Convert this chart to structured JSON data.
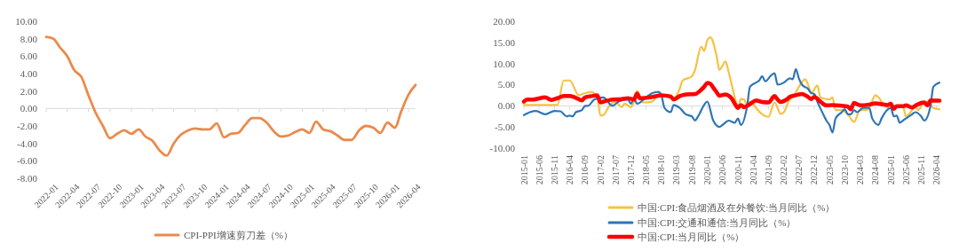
{
  "chart_data": [
    {
      "type": "line",
      "x": [
        "2022-01",
        "2022-02",
        "2022-03",
        "2022-04",
        "2022-05",
        "2022-06",
        "2022-07",
        "2022-08",
        "2022-09",
        "2022-10",
        "2022-11",
        "2022-12",
        "2023-01",
        "2023-02",
        "2023-03",
        "2023-04",
        "2023-05",
        "2023-06",
        "2023-07",
        "2023-08",
        "2023-09",
        "2023-10",
        "2023-11",
        "2023-12",
        "2024-01",
        "2024-02",
        "2024-03",
        "2024-04",
        "2024-05",
        "2024-06",
        "2024-07",
        "2024-08",
        "2024-09",
        "2024-10",
        "2024-11",
        "2024-12",
        "2025-01",
        "2025-02",
        "2025-03",
        "2025-04",
        "2025-05",
        "2025-06",
        "2025-07",
        "2025-08",
        "2025-09",
        "2025-10",
        "2025-11",
        "2025-12",
        "2026-01",
        "2026-02",
        "2026-03",
        "2026-04",
        "2026-05"
      ],
      "series": [
        {
          "name": "CPI-PPI增速剪刀差（%）",
          "color": "#eb8a4c",
          "values": [
            8.2,
            8.0,
            7.0,
            6.0,
            4.4,
            3.6,
            1.5,
            -0.5,
            -2.0,
            -3.4,
            -2.9,
            -2.5,
            -2.9,
            -2.4,
            -3.2,
            -3.7,
            -4.8,
            -5.4,
            -4.0,
            -3.0,
            -2.5,
            -2.3,
            -2.4,
            -2.4,
            -1.7,
            -3.3,
            -2.9,
            -2.8,
            -1.9,
            -1.1,
            -1.1,
            -1.6,
            -2.6,
            -3.2,
            -3.1,
            -2.7,
            -2.4,
            -2.8,
            -1.5,
            -2.4,
            -2.6,
            -3.1,
            -3.6,
            -3.6,
            -2.5,
            -2.0,
            -2.2,
            -2.8,
            -1.6,
            -2.2,
            -0.3,
            1.6,
            2.7
          ]
        }
      ],
      "xlim": [
        "2022-01",
        "2026-05"
      ],
      "xticks": [
        "2022-01",
        "2022-04",
        "2022-07",
        "2022-10",
        "2023-01",
        "2023-04",
        "2023-07",
        "2023-10",
        "2024-01",
        "2024-04",
        "2024-07",
        "2024-10",
        "2025-01",
        "2025-04",
        "2025-07",
        "2025-10",
        "2026-01",
        "2026-04"
      ],
      "ylim": [
        -8,
        10
      ],
      "yticks": [
        {
          "value": -8,
          "label": "-8.00"
        },
        {
          "value": -6,
          "label": "-6.00"
        },
        {
          "value": -4,
          "label": "-4.00"
        },
        {
          "value": -2,
          "label": "-2.00"
        },
        {
          "value": 0,
          "label": "0.00"
        },
        {
          "value": 2,
          "label": "2.00"
        },
        {
          "value": 4,
          "label": "4.00"
        },
        {
          "value": 6,
          "label": "6.00"
        },
        {
          "value": 8,
          "label": "8.00"
        },
        {
          "value": 10,
          "label": "10.00"
        }
      ],
      "legend": "bottom"
    },
    {
      "type": "line",
      "series": [
        {
          "name": "中国:CPI:食品烟酒及在外餐饮:当月同比（%）",
          "color": "#f5c242",
          "x": [
            "2015-01",
            "2015-12",
            "2016-02",
            "2016-04",
            "2016-07",
            "2016-09",
            "2016-11",
            "2017-01",
            "2017-02",
            "2017-03",
            "2017-05",
            "2017-07",
            "2017-09",
            "2017-10",
            "2017-12",
            "2018-01",
            "2018-02",
            "2018-04",
            "2018-07",
            "2018-09",
            "2019-01",
            "2019-02",
            "2019-04",
            "2019-05",
            "2019-08",
            "2019-09",
            "2019-11",
            "2019-12",
            "2020-01",
            "2020-02",
            "2020-04",
            "2020-05",
            "2020-07",
            "2020-08",
            "2020-10",
            "2020-11",
            "2020-12",
            "2021-01",
            "2021-02",
            "2021-03",
            "2021-04",
            "2021-05",
            "2021-07",
            "2021-09",
            "2021-11",
            "2022-01",
            "2022-02",
            "2022-04",
            "2022-05",
            "2022-07",
            "2022-09",
            "2022-10",
            "2022-11",
            "2023-01",
            "2023-02",
            "2023-05",
            "2023-06",
            "2023-07",
            "2023-09",
            "2023-11",
            "2024-01",
            "2024-03",
            "2024-05",
            "2024-06",
            "2024-08",
            "2024-09",
            "2024-11",
            "2025-01",
            "2025-05",
            "2025-06",
            "2025-08",
            "2025-09",
            "2025-10",
            "2025-12",
            "2026-01",
            "2026-03",
            "2026-05"
          ],
          "values": [
            0.2,
            0.2,
            6.0,
            6.0,
            2.5,
            3.0,
            3.3,
            2.0,
            -2.3,
            -2.2,
            0.0,
            1.0,
            -0.3,
            0.5,
            -0.3,
            1.0,
            3.5,
            0.8,
            1.0,
            2.5,
            2.5,
            1.8,
            4.0,
            6.0,
            7.0,
            8.5,
            14.0,
            13.0,
            15.5,
            16.2,
            12.0,
            8.5,
            10.5,
            8.0,
            2.0,
            -0.5,
            1.6,
            1.5,
            0.0,
            1.0,
            0.5,
            -0.5,
            -2.0,
            -2.6,
            0.8,
            -1.9,
            -1.5,
            1.5,
            2.0,
            4.5,
            6.3,
            5.0,
            3.0,
            4.8,
            2.0,
            1.5,
            2.0,
            -1.0,
            -1.0,
            -2.0,
            -3.8,
            -1.0,
            -1.0,
            -0.5,
            2.5,
            2.0,
            0.0,
            -0.5,
            0.0,
            -2.5,
            -1.0,
            0.0,
            -1.0,
            1.0,
            1.0,
            -0.5,
            -0.8
          ]
        },
        {
          "name": "中国:CPI:交通和通信:当月同比（%）",
          "color": "#2e75b6",
          "x": [
            "2015-01",
            "2015-03",
            "2015-05",
            "2015-08",
            "2015-11",
            "2016-01",
            "2016-03",
            "2016-04",
            "2016-05",
            "2016-06",
            "2016-08",
            "2016-09",
            "2016-10",
            "2016-12",
            "2017-03",
            "2017-06",
            "2017-08",
            "2017-11",
            "2017-12",
            "2018-01",
            "2018-02",
            "2018-05",
            "2018-07",
            "2018-09",
            "2018-10",
            "2018-11",
            "2019-01",
            "2019-02",
            "2019-04",
            "2019-06",
            "2019-08",
            "2019-09",
            "2019-10",
            "2020-01",
            "2020-03",
            "2020-05",
            "2020-06",
            "2020-08",
            "2020-10",
            "2020-11",
            "2020-12",
            "2021-02",
            "2021-03",
            "2021-05",
            "2021-06",
            "2021-07",
            "2021-08",
            "2021-10",
            "2021-11",
            "2021-12",
            "2022-02",
            "2022-04",
            "2022-05",
            "2022-06",
            "2022-07",
            "2022-08",
            "2022-10",
            "2022-11",
            "2022-12",
            "2023-01",
            "2023-03",
            "2023-04",
            "2023-05",
            "2023-06",
            "2023-07",
            "2023-09",
            "2023-10",
            "2023-11",
            "2023-12",
            "2024-01",
            "2024-02",
            "2024-04",
            "2024-06",
            "2024-07",
            "2024-09",
            "2024-10",
            "2025-01",
            "2025-02",
            "2025-03",
            "2025-04",
            "2025-05",
            "2025-08",
            "2025-09",
            "2025-11",
            "2025-12",
            "2026-02",
            "2026-03",
            "2026-05"
          ],
          "values": [
            -2.2,
            -1.5,
            -1.2,
            -2.0,
            -1.2,
            -1.3,
            -2.5,
            -2.3,
            -2.5,
            -1.5,
            -1.0,
            0.0,
            0.0,
            1.5,
            2.0,
            0.0,
            1.0,
            1.5,
            0.5,
            1.8,
            0.5,
            2.0,
            3.0,
            3.3,
            2.5,
            -0.5,
            -1.5,
            0.2,
            -0.5,
            -2.0,
            -2.5,
            -3.5,
            -2.5,
            1.0,
            -3.5,
            -5.0,
            -4.5,
            -3.5,
            -4.0,
            -3.0,
            -4.5,
            0.0,
            4.5,
            5.5,
            6.0,
            7.0,
            5.8,
            7.3,
            7.7,
            5.0,
            5.5,
            6.5,
            6.3,
            8.7,
            6.5,
            5.0,
            4.0,
            3.0,
            2.8,
            1.0,
            -2.0,
            -3.5,
            -4.5,
            -6.3,
            -3.0,
            -1.5,
            -0.8,
            -2.0,
            -2.0,
            -1.0,
            -1.5,
            -0.5,
            -0.5,
            -3.0,
            -4.5,
            -3.0,
            -0.5,
            -2.5,
            -2.3,
            -4.0,
            -3.5,
            -2.0,
            -1.5,
            -2.5,
            -3.5,
            0.0,
            4.5,
            5.5
          ]
        },
        {
          "name": "中国:CPI:当月同比（%）",
          "color": "#ff0000",
          "x": [
            "2015-01",
            "2015-02",
            "2015-04",
            "2015-08",
            "2015-10",
            "2015-12",
            "2016-02",
            "2016-04",
            "2016-06",
            "2016-08",
            "2016-09",
            "2016-11",
            "2017-01",
            "2017-02",
            "2017-04",
            "2017-06",
            "2017-09",
            "2017-11",
            "2018-01",
            "2018-02",
            "2018-03",
            "2018-07",
            "2018-10",
            "2019-01",
            "2019-02",
            "2019-04",
            "2019-06",
            "2019-09",
            "2019-11",
            "2019-12",
            "2020-01",
            "2020-02",
            "2020-03",
            "2020-04",
            "2020-05",
            "2020-07",
            "2020-08",
            "2020-09",
            "2020-10",
            "2020-11",
            "2020-12",
            "2021-01",
            "2021-03",
            "2021-05",
            "2021-07",
            "2021-09",
            "2021-11",
            "2021-12",
            "2022-01",
            "2022-03",
            "2022-04",
            "2022-06",
            "2022-08",
            "2022-10",
            "2022-11",
            "2022-12",
            "2023-02",
            "2023-04",
            "2023-06",
            "2023-09",
            "2023-11",
            "2023-12",
            "2024-01",
            "2024-03",
            "2024-06",
            "2024-08",
            "2024-10",
            "2024-12",
            "2025-01",
            "2025-02",
            "2025-03",
            "2025-05",
            "2025-06",
            "2025-08",
            "2025-09",
            "2025-11",
            "2025-12",
            "2026-01",
            "2026-02",
            "2026-05"
          ],
          "values": [
            1.0,
            1.5,
            1.5,
            2.0,
            1.4,
            1.8,
            2.3,
            2.3,
            1.9,
            1.3,
            2.0,
            2.3,
            2.5,
            0.8,
            1.2,
            1.5,
            1.6,
            1.8,
            1.5,
            2.9,
            1.8,
            2.1,
            2.5,
            2.2,
            1.5,
            2.3,
            2.7,
            2.8,
            3.8,
            4.5,
            5.4,
            5.2,
            4.3,
            3.3,
            2.4,
            2.7,
            2.4,
            1.7,
            0.5,
            -0.5,
            0.2,
            -0.3,
            0.4,
            1.3,
            0.9,
            0.8,
            2.3,
            1.5,
            0.9,
            1.5,
            2.1,
            2.5,
            2.8,
            2.1,
            1.6,
            2.1,
            1.0,
            0.1,
            0.2,
            0.0,
            -0.2,
            -0.8,
            0.7,
            0.1,
            0.3,
            0.6,
            0.4,
            0.2,
            0.5,
            -0.7,
            -0.1,
            -0.1,
            0.1,
            -0.4,
            0.0,
            0.7,
            0.8,
            0.1,
            1.3,
            1.2
          ]
        }
      ],
      "xlim": [
        "2015-01",
        "2026-05"
      ],
      "xticks": [
        "2015-01",
        "2015-06",
        "2015-11",
        "2016-04",
        "2016-09",
        "2017-02",
        "2017-07",
        "2017-12",
        "2018-05",
        "2018-10",
        "2019-03",
        "2019-08",
        "2020-01",
        "2020-06",
        "2020-11",
        "2021-04",
        "2021-09",
        "2022-02",
        "2022-07",
        "2022-12",
        "2023-05",
        "2023-10",
        "2024-03",
        "2024-08",
        "2025-01",
        "2025-06",
        "2025-11",
        "2026-04"
      ],
      "ylim": [
        -10,
        20
      ],
      "yticks": [
        {
          "value": -10,
          "label": "-10.00"
        },
        {
          "value": -5,
          "label": "-5.00"
        },
        {
          "value": 0,
          "label": "0.00"
        },
        {
          "value": 5,
          "label": "5.00"
        },
        {
          "value": 10,
          "label": "10.00"
        },
        {
          "value": 15,
          "label": "15.00"
        },
        {
          "value": 20,
          "label": "20.00"
        }
      ],
      "legend": "bottom"
    }
  ]
}
